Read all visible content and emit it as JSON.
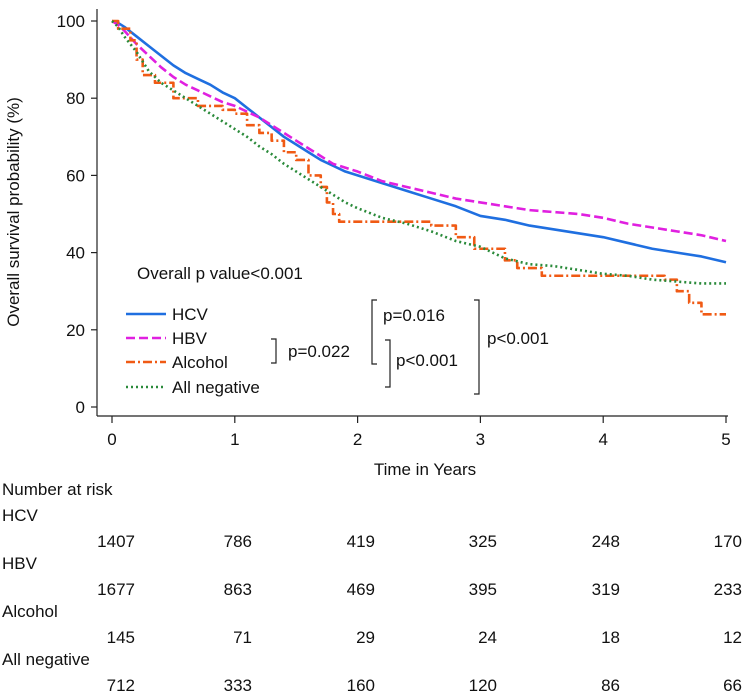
{
  "chart_data": {
    "type": "line",
    "title": "",
    "xlabel": "Time in Years",
    "ylabel": "Overall survival probability (%)",
    "xlim": [
      0,
      5
    ],
    "ylim": [
      0,
      100
    ],
    "x_ticks": [
      "0",
      "1",
      "2",
      "3",
      "4",
      "5"
    ],
    "y_ticks": [
      "0",
      "20",
      "40",
      "60",
      "80",
      "100"
    ],
    "legend_position": "bottom-left",
    "series": [
      {
        "name": "HCV",
        "color": "#1f6fe0",
        "style": "solid",
        "points": [
          [
            0,
            100
          ],
          [
            0.05,
            99.5
          ],
          [
            0.1,
            98.5
          ],
          [
            0.2,
            96
          ],
          [
            0.3,
            93.5
          ],
          [
            0.4,
            91
          ],
          [
            0.5,
            88.5
          ],
          [
            0.6,
            86.5
          ],
          [
            0.7,
            85
          ],
          [
            0.8,
            83.5
          ],
          [
            0.9,
            81.5
          ],
          [
            1.0,
            80
          ],
          [
            1.1,
            77.5
          ],
          [
            1.2,
            75
          ],
          [
            1.3,
            72.5
          ],
          [
            1.4,
            70
          ],
          [
            1.5,
            68
          ],
          [
            1.6,
            66
          ],
          [
            1.7,
            64
          ],
          [
            1.8,
            62.5
          ],
          [
            1.9,
            61
          ],
          [
            2.0,
            60
          ],
          [
            2.2,
            58
          ],
          [
            2.4,
            56
          ],
          [
            2.6,
            54
          ],
          [
            2.8,
            52
          ],
          [
            3.0,
            49.5
          ],
          [
            3.2,
            48.5
          ],
          [
            3.4,
            47
          ],
          [
            3.6,
            46
          ],
          [
            3.8,
            45
          ],
          [
            4.0,
            44
          ],
          [
            4.2,
            42.5
          ],
          [
            4.4,
            41
          ],
          [
            4.6,
            40
          ],
          [
            4.8,
            39
          ],
          [
            5.0,
            37.5
          ]
        ]
      },
      {
        "name": "HBV",
        "color": "#e020e0",
        "style": "dashed",
        "points": [
          [
            0,
            100
          ],
          [
            0.05,
            99
          ],
          [
            0.1,
            97.5
          ],
          [
            0.2,
            94
          ],
          [
            0.3,
            91
          ],
          [
            0.4,
            88
          ],
          [
            0.5,
            85.5
          ],
          [
            0.6,
            83.5
          ],
          [
            0.7,
            82
          ],
          [
            0.8,
            80.5
          ],
          [
            0.9,
            79
          ],
          [
            1.0,
            78
          ],
          [
            1.2,
            75
          ],
          [
            1.4,
            71
          ],
          [
            1.6,
            67
          ],
          [
            1.8,
            63
          ],
          [
            2.0,
            61
          ],
          [
            2.2,
            58.5
          ],
          [
            2.4,
            57
          ],
          [
            2.6,
            55.5
          ],
          [
            2.8,
            54
          ],
          [
            3.0,
            53
          ],
          [
            3.2,
            52
          ],
          [
            3.4,
            51
          ],
          [
            3.6,
            50.5
          ],
          [
            3.8,
            50
          ],
          [
            4.0,
            49
          ],
          [
            4.2,
            47.5
          ],
          [
            4.4,
            46.5
          ],
          [
            4.6,
            45.5
          ],
          [
            4.8,
            44.5
          ],
          [
            5.0,
            43
          ]
        ]
      },
      {
        "name": "Alcohol",
        "color": "#f05a14",
        "style": "dashdot",
        "points": [
          [
            0,
            100
          ],
          [
            0.05,
            98
          ],
          [
            0.15,
            95
          ],
          [
            0.2,
            90
          ],
          [
            0.25,
            86
          ],
          [
            0.35,
            84
          ],
          [
            0.5,
            80
          ],
          [
            0.7,
            78
          ],
          [
            0.9,
            77
          ],
          [
            1.0,
            76
          ],
          [
            1.1,
            73
          ],
          [
            1.2,
            71
          ],
          [
            1.3,
            69
          ],
          [
            1.4,
            66
          ],
          [
            1.5,
            64
          ],
          [
            1.6,
            60
          ],
          [
            1.7,
            57
          ],
          [
            1.75,
            53
          ],
          [
            1.8,
            50
          ],
          [
            1.85,
            48
          ],
          [
            2.2,
            48
          ],
          [
            2.6,
            47
          ],
          [
            2.8,
            44
          ],
          [
            2.95,
            41
          ],
          [
            3.1,
            41
          ],
          [
            3.2,
            38
          ],
          [
            3.3,
            36
          ],
          [
            3.5,
            34
          ],
          [
            3.7,
            34
          ],
          [
            3.9,
            34
          ],
          [
            4.2,
            34
          ],
          [
            4.4,
            34
          ],
          [
            4.5,
            33
          ],
          [
            4.6,
            30
          ],
          [
            4.7,
            27
          ],
          [
            4.8,
            24
          ],
          [
            5.0,
            24
          ]
        ]
      },
      {
        "name": "All negative",
        "color": "#2a8a3a",
        "style": "dotted",
        "points": [
          [
            0,
            100
          ],
          [
            0.05,
            98.5
          ],
          [
            0.1,
            96
          ],
          [
            0.2,
            92
          ],
          [
            0.3,
            87
          ],
          [
            0.4,
            84
          ],
          [
            0.5,
            82
          ],
          [
            0.6,
            80
          ],
          [
            0.7,
            78
          ],
          [
            0.8,
            76
          ],
          [
            0.9,
            74
          ],
          [
            1.0,
            72
          ],
          [
            1.1,
            70
          ],
          [
            1.2,
            67.5
          ],
          [
            1.3,
            65.5
          ],
          [
            1.4,
            63
          ],
          [
            1.5,
            61
          ],
          [
            1.6,
            59
          ],
          [
            1.7,
            57
          ],
          [
            1.8,
            55
          ],
          [
            1.9,
            53
          ],
          [
            2.0,
            51.5
          ],
          [
            2.2,
            49
          ],
          [
            2.4,
            47.5
          ],
          [
            2.6,
            45.5
          ],
          [
            2.8,
            43
          ],
          [
            3.0,
            41.5
          ],
          [
            3.2,
            38.5
          ],
          [
            3.4,
            37
          ],
          [
            3.6,
            36.5
          ],
          [
            3.8,
            35.5
          ],
          [
            4.0,
            34.5
          ],
          [
            4.2,
            34
          ],
          [
            4.4,
            33
          ],
          [
            4.6,
            32.5
          ],
          [
            4.8,
            32
          ],
          [
            5.0,
            32
          ]
        ]
      }
    ],
    "annotations": {
      "overall_p": "Overall p value<0.001",
      "p_hcv_alcohol": "p=0.016",
      "p_hbv_alcohol": "p=0.022",
      "p_hbv_allneg": "p<0.001",
      "p_hcv_allneg": "p<0.001"
    }
  },
  "risk_table": {
    "title": "Number at risk",
    "rows": [
      {
        "name": "HCV",
        "values": [
          "1407",
          "786",
          "419",
          "325",
          "248",
          "170"
        ]
      },
      {
        "name": "HBV",
        "values": [
          "1677",
          "863",
          "469",
          "395",
          "319",
          "233"
        ]
      },
      {
        "name": "Alcohol",
        "values": [
          "145",
          "71",
          "29",
          "24",
          "18",
          "12"
        ]
      },
      {
        "name": "All negative",
        "values": [
          "712",
          "333",
          "160",
          "120",
          "86",
          "66"
        ]
      }
    ]
  }
}
